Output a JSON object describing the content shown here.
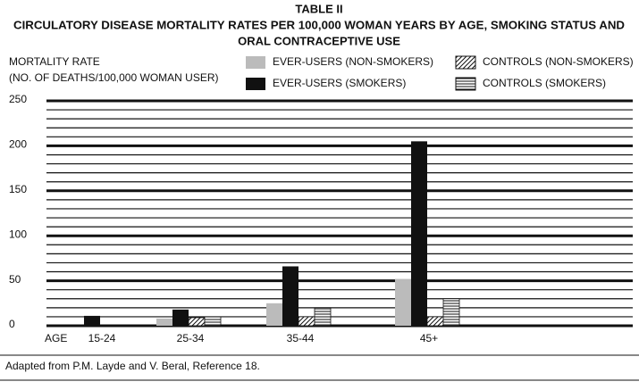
{
  "chart_data": {
    "type": "bar",
    "title_lines": [
      "TABLE II",
      "CIRCULATORY DISEASE MORTALITY RATES PER 100,000 WOMAN YEARS BY AGE, SMOKING STATUS AND",
      "ORAL CONTRACEPTIVE USE"
    ],
    "y_label_lines": [
      "MORTALITY RATE",
      "(NO. OF DEATHS/100,000 WOMAN USER)"
    ],
    "x_label": "AGE",
    "categories": [
      "15-24",
      "25-34",
      "35-44",
      "45+"
    ],
    "series": [
      {
        "name": "EVER-USERS (NON-SMOKERS)",
        "color": "#bbbbbb",
        "pattern": "solid",
        "values": [
          null,
          8,
          25,
          52
        ]
      },
      {
        "name": "EVER-USERS (SMOKERS)",
        "color": "#111111",
        "pattern": "solid",
        "values": [
          11,
          18,
          66,
          205
        ]
      },
      {
        "name": "CONTROLS (NON-SMOKERS)",
        "color": "#111111",
        "pattern": "diagonal",
        "values": [
          null,
          9,
          10,
          10
        ]
      },
      {
        "name": "CONTROLS (SMOKERS)",
        "color": "#111111",
        "pattern": "horizontal",
        "values": [
          null,
          10,
          20,
          30
        ]
      }
    ],
    "ylim": [
      0,
      250
    ],
    "yticks": [
      0,
      50,
      100,
      150,
      200,
      250
    ],
    "minor_yticks": [
      10,
      20,
      30,
      40,
      60,
      70,
      80,
      90,
      110,
      120,
      130,
      140,
      160,
      170,
      180,
      190,
      210,
      220,
      230,
      240
    ],
    "grid": true,
    "source": "Adapted from P.M. Layde and V. Beral, Reference 18."
  }
}
